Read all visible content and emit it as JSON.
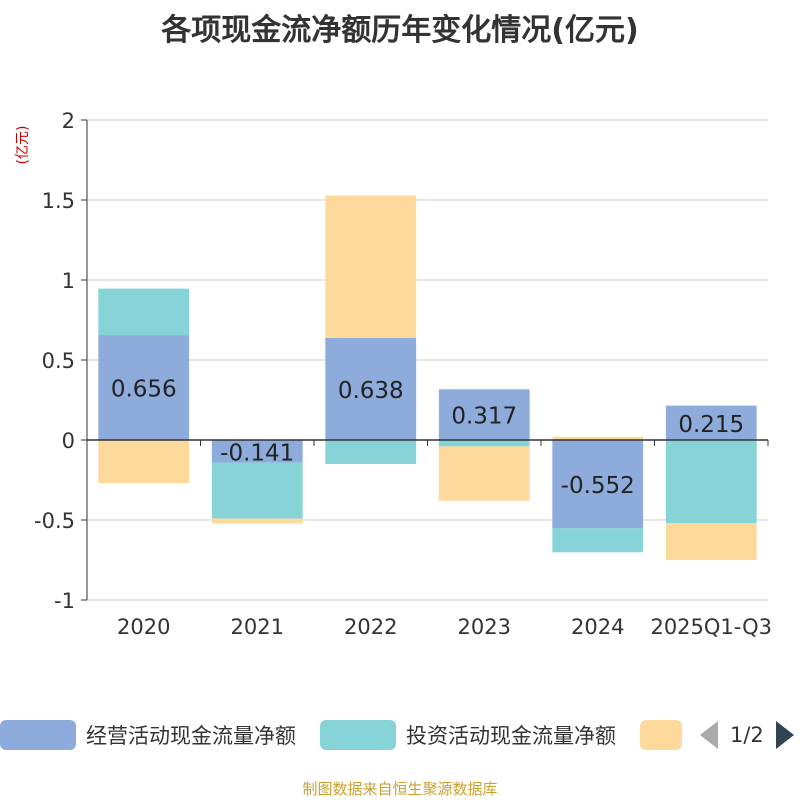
{
  "chart_data": {
    "type": "bar",
    "stacked": true,
    "title": "各项现金流净额历年变化情况(亿元)",
    "ylabel": "(亿元)",
    "xlabel": "",
    "ylim": [
      -1,
      2
    ],
    "yticks": [
      -1,
      -0.5,
      0,
      0.5,
      1,
      1.5,
      2
    ],
    "ytick_labels": [
      "-1",
      "-0.5",
      "0",
      "0.5",
      "1",
      "1.5",
      "2"
    ],
    "grid": true,
    "categories": [
      "2020",
      "2021",
      "2022",
      "2023",
      "2024",
      "2025Q1-Q3"
    ],
    "series": [
      {
        "name": "经营活动现金流量净额",
        "color": "#8eacdb",
        "values": [
          0.656,
          -0.141,
          0.638,
          0.317,
          -0.552,
          0.215
        ],
        "labels": [
          "0.656",
          "-0.141",
          "0.638",
          "0.317",
          "-0.552",
          "0.215"
        ]
      },
      {
        "name": "投资活动现金流量净额",
        "color": "#86d4d8",
        "values": [
          0.29,
          -0.35,
          -0.15,
          -0.04,
          -0.15,
          -0.52
        ]
      },
      {
        "name": "",
        "color": "#fdd99b",
        "values": [
          -0.27,
          -0.03,
          0.89,
          -0.34,
          0.02,
          -0.23
        ]
      }
    ],
    "legend_position": "bottom"
  },
  "legend": {
    "items": [
      {
        "label": "经营活动现金流量净额",
        "color": "#8eacdb"
      },
      {
        "label": "投资活动现金流量净额",
        "color": "#86d4d8"
      },
      {
        "label": "",
        "color": "#fdd99b"
      }
    ],
    "page": "1/2"
  },
  "source": "制图数据来自恒生聚源数据库"
}
